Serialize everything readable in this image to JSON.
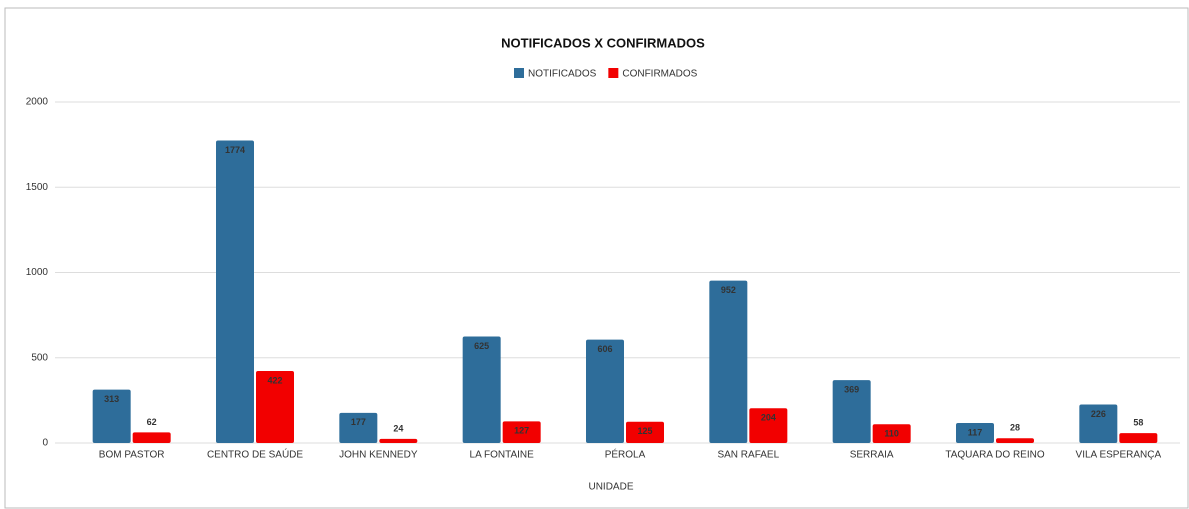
{
  "chart_data": {
    "type": "bar",
    "title": "NOTIFICADOS X CONFIRMADOS",
    "x_label": "UNIDADE",
    "categories": [
      "BOM PASTOR",
      "CENTRO DE SAÚDE",
      "JOHN KENNEDY",
      "LA FONTAINE",
      "PÉROLA",
      "SAN RAFAEL",
      "SERRAIA",
      "TAQUARA DO REINO",
      "VILA ESPERANÇA"
    ],
    "series": [
      {
        "name": "NOTIFICADOS",
        "color": "#2e6d9a",
        "values": [
          313,
          1774,
          177,
          625,
          606,
          952,
          369,
          117,
          226
        ]
      },
      {
        "name": "CONFIRMADOS",
        "color": "#f20000",
        "values": [
          62,
          422,
          24,
          127,
          125,
          204,
          110,
          28,
          58
        ]
      }
    ],
    "ylim": [
      0,
      2000
    ],
    "yticks": [
      0,
      500,
      1000,
      1500,
      2000
    ],
    "grid": true,
    "legend": "top"
  }
}
